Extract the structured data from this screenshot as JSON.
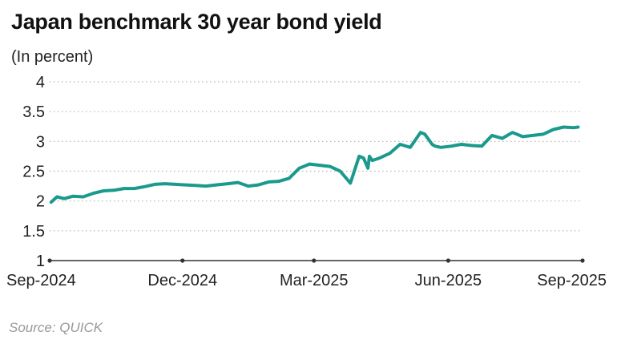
{
  "title": "Japan benchmark 30 year bond yield",
  "subtitle": "(In percent)",
  "source": "Source: QUICK",
  "colors": {
    "line": "#1a9a8c",
    "grid": "#b5b5b5",
    "axis": "#333333",
    "text": "#222222"
  },
  "chart_data": {
    "type": "line",
    "title": "Japan benchmark 30 year bond yield",
    "ylabel": "(In percent)",
    "xlabel": "",
    "ylim": [
      1,
      4
    ],
    "yticks": [
      "1",
      "1.5",
      "2",
      "2.5",
      "3",
      "3.5",
      "4"
    ],
    "xticks": [
      "Sep-2024",
      "Dec-2024",
      "Mar-2025",
      "Jun-2025",
      "Sep-2025"
    ],
    "grid": "horizontal dotted",
    "series": [
      {
        "x": [
          "2024-09-02",
          "2024-09-06",
          "2024-09-11",
          "2024-09-17",
          "2024-09-24",
          "2024-10-01",
          "2024-10-08",
          "2024-10-15",
          "2024-10-22",
          "2024-10-29",
          "2024-11-05",
          "2024-11-12",
          "2024-11-19",
          "2024-11-26",
          "2024-12-03",
          "2024-12-10",
          "2024-12-17",
          "2024-12-24",
          "2025-01-01",
          "2025-01-08",
          "2025-01-15",
          "2025-01-22",
          "2025-01-29",
          "2025-02-05",
          "2025-02-12",
          "2025-02-19",
          "2025-02-26",
          "2025-03-05",
          "2025-03-12",
          "2025-03-19",
          "2025-03-26",
          "2025-04-01",
          "2025-04-04",
          "2025-04-07",
          "2025-04-08",
          "2025-04-10",
          "2025-04-15",
          "2025-04-22",
          "2025-04-29",
          "2025-05-06",
          "2025-05-13",
          "2025-05-16",
          "2025-05-21",
          "2025-05-23",
          "2025-05-27",
          "2025-06-03",
          "2025-06-10",
          "2025-06-17",
          "2025-06-24",
          "2025-07-01",
          "2025-07-08",
          "2025-07-15",
          "2025-07-22",
          "2025-07-29",
          "2025-08-05",
          "2025-08-12",
          "2025-08-19",
          "2025-08-26",
          "2025-08-29"
        ],
        "values": [
          1.98,
          2.07,
          2.04,
          2.08,
          2.07,
          2.13,
          2.17,
          2.18,
          2.21,
          2.21,
          2.24,
          2.28,
          2.29,
          2.28,
          2.27,
          2.26,
          2.25,
          2.27,
          2.29,
          2.31,
          2.25,
          2.27,
          2.32,
          2.33,
          2.38,
          2.55,
          2.62,
          2.6,
          2.58,
          2.5,
          2.3,
          2.75,
          2.72,
          2.55,
          2.75,
          2.68,
          2.72,
          2.8,
          2.95,
          2.9,
          3.15,
          3.12,
          2.95,
          2.92,
          2.9,
          2.92,
          2.95,
          2.93,
          2.92,
          3.1,
          3.05,
          3.15,
          3.08,
          3.1,
          3.12,
          3.2,
          3.24,
          3.23,
          3.24
        ]
      }
    ]
  }
}
